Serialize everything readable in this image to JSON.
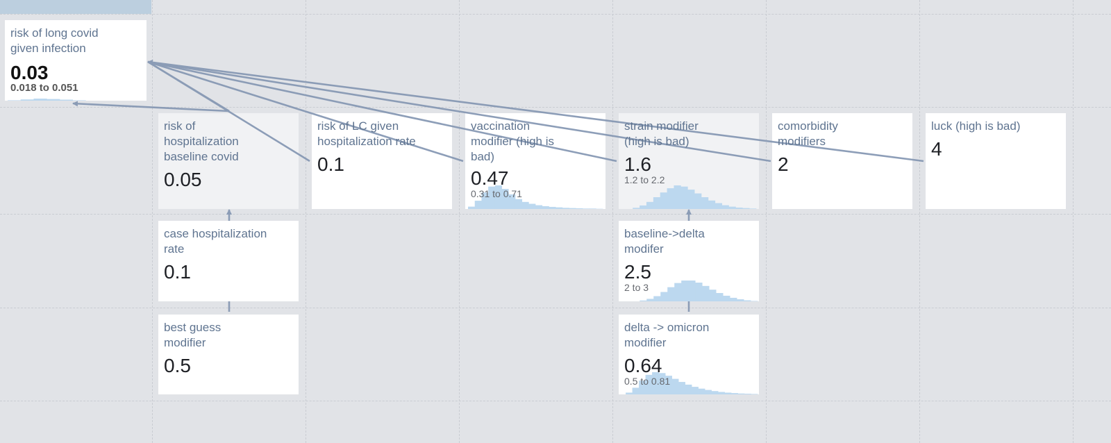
{
  "cells": {
    "main": {
      "name": "risk of long covid given infection",
      "value": "0.03",
      "range": "0.018 to 0.051"
    },
    "hosp_baseline": {
      "name": "risk of hospitalization baseline covid",
      "value": "0.05"
    },
    "lc_given_hosp": {
      "name": "risk of LC given hospitalization rate",
      "value": "0.1"
    },
    "vaccination": {
      "name": "vaccination modifier (high is bad)",
      "value": "0.47",
      "range": "0.31 to 0.71"
    },
    "strain": {
      "name": "strain modifier (high is bad)",
      "value": "1.6",
      "range": "1.2 to 2.2"
    },
    "comorbidity": {
      "name": "comorbidity modifiers",
      "value": "2"
    },
    "luck": {
      "name": "luck (high is bad)",
      "value": "4"
    },
    "case_hosp": {
      "name": "case hospitalization rate",
      "value": "0.1"
    },
    "baseline_delta": {
      "name": "baseline->delta modifer",
      "value": "2.5",
      "range": "2 to 3"
    },
    "best_guess": {
      "name": "best guess modifier",
      "value": "0.5"
    },
    "delta_omicron": {
      "name": "delta -> omicron modifier",
      "value": "0.64",
      "range": "0.5 to 0.81"
    }
  },
  "colors": {
    "background": "#e1e3e7",
    "link": "#8496b2",
    "histogram": "#bcd8ef",
    "label": "#5f7490"
  }
}
